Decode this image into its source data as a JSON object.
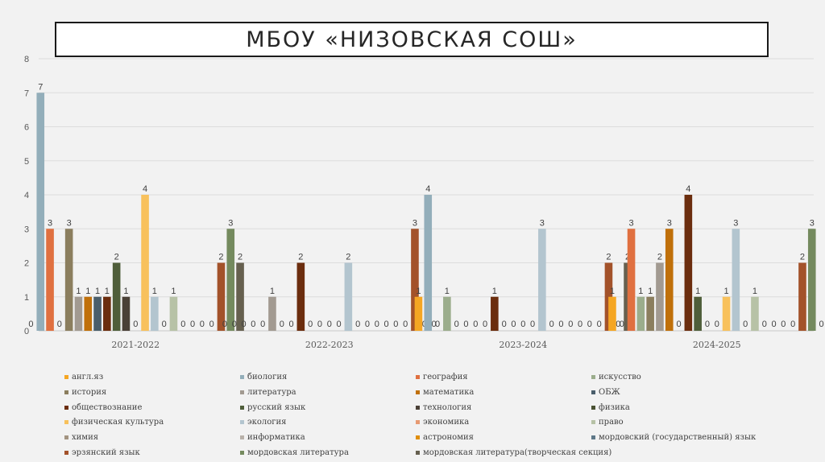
{
  "slide": {
    "title": "МБОУ «НИЗОВСКАЯ СОШ»"
  },
  "chart_data": {
    "type": "bar",
    "ylim": [
      0,
      8
    ],
    "yticks": [
      0,
      1,
      2,
      3,
      4,
      5,
      6,
      7,
      8
    ],
    "grid": true,
    "legend_position": "bottom",
    "categories": [
      "2021-2022",
      "2022-2023",
      "2023-2024",
      "2024-2025"
    ],
    "series": [
      {
        "name": "англ.яз",
        "color": "#f5a623",
        "values": [
          0,
          0,
          1,
          1
        ]
      },
      {
        "name": "биология",
        "color": "#93aeba",
        "values": [
          7,
          0,
          4,
          0
        ]
      },
      {
        "name": "география",
        "color": "#e07040",
        "values": [
          3,
          0,
          0,
          3
        ]
      },
      {
        "name": "искусство",
        "color": "#9bad8c",
        "values": [
          0,
          0,
          1,
          1
        ]
      },
      {
        "name": "история",
        "color": "#8b7e5e",
        "values": [
          3,
          0,
          0,
          1
        ]
      },
      {
        "name": "литература",
        "color": "#a29a91",
        "values": [
          1,
          1,
          0,
          2
        ]
      },
      {
        "name": "математика",
        "color": "#c0700a",
        "values": [
          1,
          0,
          0,
          3
        ]
      },
      {
        "name": "ОБЖ",
        "color": "#4a5e6b",
        "values": [
          1,
          0,
          0,
          0
        ]
      },
      {
        "name": "обществознание",
        "color": "#6b2d0e",
        "values": [
          1,
          2,
          1,
          4
        ]
      },
      {
        "name": "русский язык",
        "color": "#4f5e3a",
        "values": [
          2,
          0,
          0,
          1
        ]
      },
      {
        "name": "технология",
        "color": "#4a4036",
        "values": [
          1,
          0,
          0,
          0
        ]
      },
      {
        "name": "физика",
        "color": "#4a5233",
        "values": [
          0,
          0,
          0,
          0
        ]
      },
      {
        "name": "физическая культура",
        "color": "#f8c15c",
        "values": [
          4,
          0,
          0,
          1
        ]
      },
      {
        "name": "экология",
        "color": "#b3c5cf",
        "values": [
          1,
          2,
          3,
          3
        ]
      },
      {
        "name": "экономика",
        "color": "#e79a72",
        "values": [
          0,
          0,
          0,
          0
        ]
      },
      {
        "name": "право",
        "color": "#b7c2a6",
        "values": [
          1,
          0,
          0,
          1
        ]
      },
      {
        "name": "химия",
        "color": "#a39481",
        "values": [
          0,
          0,
          0,
          0
        ]
      },
      {
        "name": "информатика",
        "color": "#b8b1a9",
        "values": [
          0,
          0,
          0,
          0
        ]
      },
      {
        "name": "астрономия",
        "color": "#e08e0b",
        "values": [
          0,
          0,
          0,
          0
        ]
      },
      {
        "name": "мордовский (государственный) язык",
        "color": "#5e7888",
        "values": [
          0,
          0,
          0,
          0
        ]
      },
      {
        "name": "эрзянский язык",
        "color": "#a3522a",
        "values": [
          2,
          3,
          2,
          2
        ]
      },
      {
        "name": "мордовская литература",
        "color": "#748a5e",
        "values": [
          3,
          0,
          0,
          3
        ]
      },
      {
        "name": "мордовская литература(творческая секция)",
        "color": "#66604f",
        "values": [
          2,
          0,
          2,
          0
        ]
      }
    ]
  }
}
